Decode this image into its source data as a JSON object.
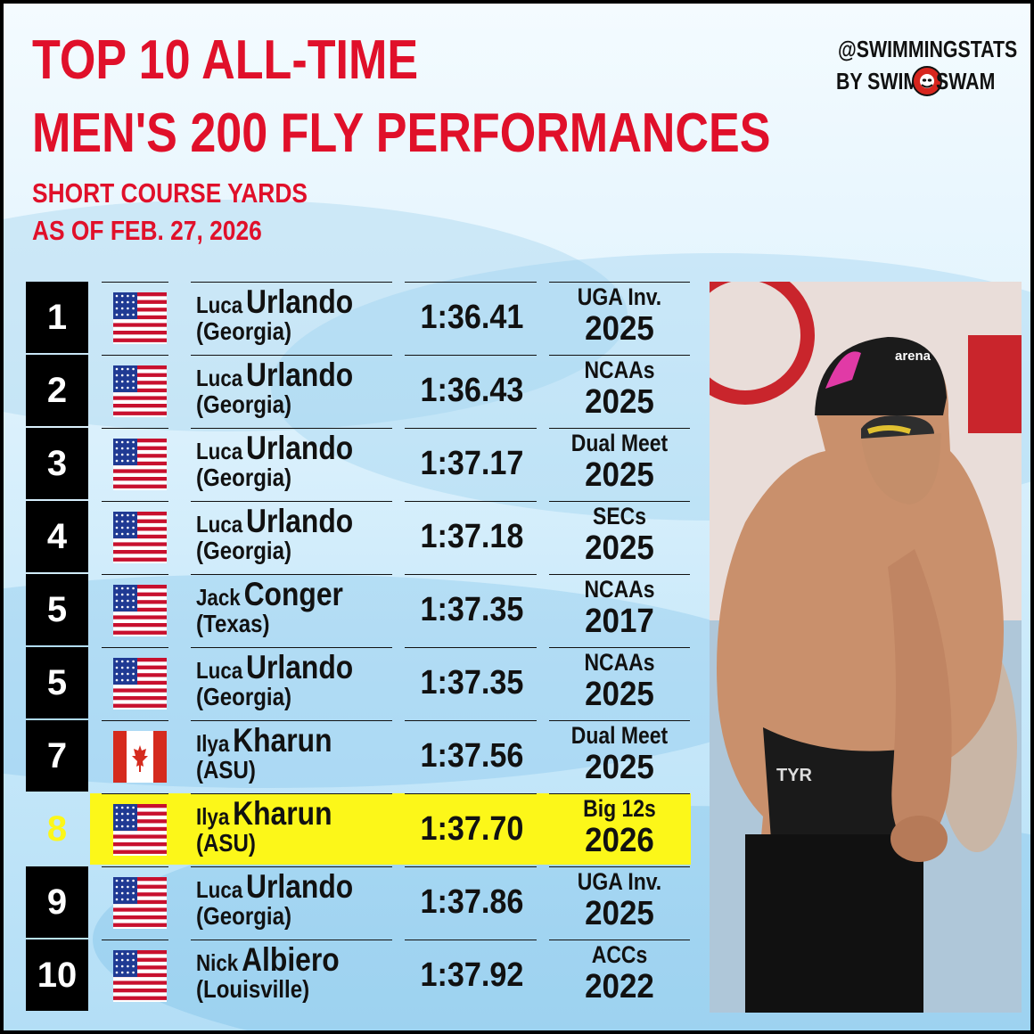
{
  "title": {
    "line1": "TOP 10 ALL-TIME",
    "line2": "MEN'S 200 FLY PERFORMANCES"
  },
  "subtitle": {
    "line1": "SHORT COURSE YARDS",
    "line2": "AS OF FEB. 27, 2026"
  },
  "brand": {
    "handle": "@SWIMMINGSTATS",
    "by": "BY SWIM",
    "swam": "SWAM"
  },
  "colors": {
    "title_red": "#e0102a",
    "highlight_yellow": "#fcf719",
    "rank_black": "#000000"
  },
  "rows": [
    {
      "rank": "1",
      "flag": "usa-flag-icon",
      "first": "Luca",
      "last": "Urlando",
      "school": "(Georgia)",
      "time": "1:36.41",
      "meet": "UGA Inv.",
      "year": "2025",
      "highlight": false
    },
    {
      "rank": "2",
      "flag": "usa-flag-icon",
      "first": "Luca",
      "last": "Urlando",
      "school": "(Georgia)",
      "time": "1:36.43",
      "meet": "NCAAs",
      "year": "2025",
      "highlight": false
    },
    {
      "rank": "3",
      "flag": "usa-flag-icon",
      "first": "Luca",
      "last": "Urlando",
      "school": "(Georgia)",
      "time": "1:37.17",
      "meet": "Dual Meet",
      "year": "2025",
      "highlight": false
    },
    {
      "rank": "4",
      "flag": "usa-flag-icon",
      "first": "Luca",
      "last": "Urlando",
      "school": "(Georgia)",
      "time": "1:37.18",
      "meet": "SECs",
      "year": "2025",
      "highlight": false
    },
    {
      "rank": "5",
      "flag": "usa-flag-icon",
      "first": "Jack",
      "last": "Conger",
      "school": "(Texas)",
      "time": "1:37.35",
      "meet": "NCAAs",
      "year": "2017",
      "highlight": false
    },
    {
      "rank": "5",
      "flag": "usa-flag-icon",
      "first": "Luca",
      "last": "Urlando",
      "school": "(Georgia)",
      "time": "1:37.35",
      "meet": "NCAAs",
      "year": "2025",
      "highlight": false
    },
    {
      "rank": "7",
      "flag": "canada-flag-icon",
      "first": "Ilya",
      "last": "Kharun",
      "school": "(ASU)",
      "time": "1:37.56",
      "meet": "Dual Meet",
      "year": "2025",
      "highlight": false
    },
    {
      "rank": "8",
      "flag": "usa-flag-icon",
      "first": "Ilya",
      "last": "Kharun",
      "school": "(ASU)",
      "time": "1:37.70",
      "meet": "Big 12s",
      "year": "2026",
      "highlight": true
    },
    {
      "rank": "9",
      "flag": "usa-flag-icon",
      "first": "Luca",
      "last": "Urlando",
      "school": "(Georgia)",
      "time": "1:37.86",
      "meet": "UGA Inv.",
      "year": "2025",
      "highlight": false
    },
    {
      "rank": "10",
      "flag": "usa-flag-icon",
      "first": "Nick",
      "last": "Albiero",
      "school": "(Louisville)",
      "time": "1:37.92",
      "meet": "ACCs",
      "year": "2022",
      "highlight": false
    }
  ],
  "photo": {
    "cap_brand": "arena",
    "suit_brand": "TYR"
  }
}
